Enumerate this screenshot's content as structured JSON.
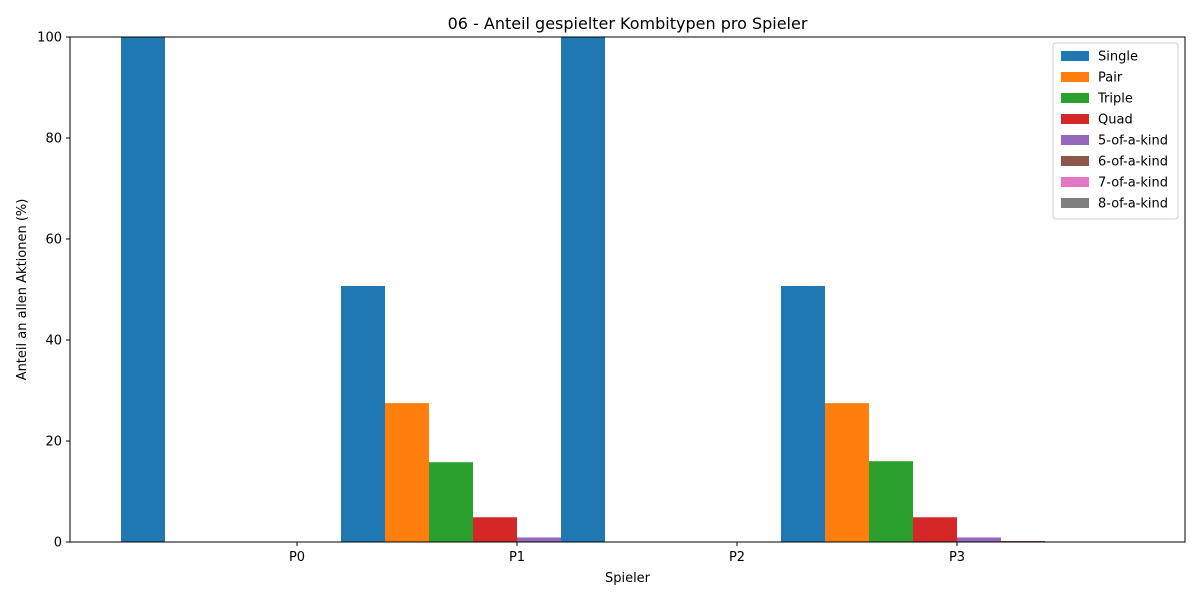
{
  "chart_data": {
    "type": "bar",
    "title": "06 - Anteil gespielter Kombitypen pro Spieler",
    "xlabel": "Spieler",
    "ylabel": "Anteil an allen Aktionen (%)",
    "categories": [
      "P0",
      "P1",
      "P2",
      "P3"
    ],
    "ylim": [
      0,
      100
    ],
    "yticks": [
      0,
      20,
      40,
      60,
      80,
      100
    ],
    "grid": false,
    "legend_position": "top-right",
    "series": [
      {
        "name": "Single",
        "color": "#1f77b4",
        "values": [
          100.0,
          50.7,
          100.0,
          50.7
        ]
      },
      {
        "name": "Pair",
        "color": "#ff7f0e",
        "values": [
          0,
          27.5,
          0,
          27.5
        ]
      },
      {
        "name": "Triple",
        "color": "#2ca02c",
        "values": [
          0,
          15.8,
          0,
          16.0
        ]
      },
      {
        "name": "Quad",
        "color": "#d62728",
        "values": [
          0,
          4.9,
          0,
          4.9
        ]
      },
      {
        "name": "5-of-a-kind",
        "color": "#9467bd",
        "values": [
          0,
          0.9,
          0,
          0.9
        ]
      },
      {
        "name": "6-of-a-kind",
        "color": "#8c564b",
        "values": [
          0,
          0.2,
          0,
          0.2
        ]
      },
      {
        "name": "7-of-a-kind",
        "color": "#e377c2",
        "values": [
          0,
          0,
          0,
          0
        ]
      },
      {
        "name": "8-of-a-kind",
        "color": "#7f7f7f",
        "values": [
          0,
          0,
          0,
          0
        ]
      }
    ]
  }
}
